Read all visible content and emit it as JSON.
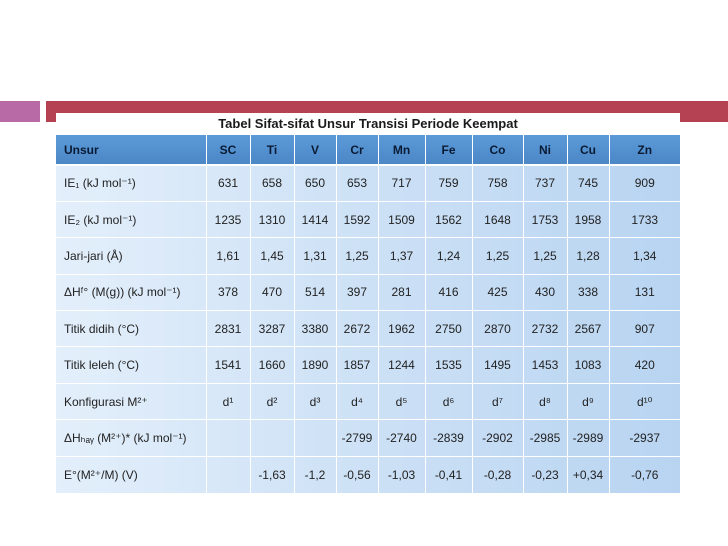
{
  "title": "Tabel Sifat-sifat Unsur Transisi Periode Keempat",
  "columns": [
    "Unsur",
    "SC",
    "Ti",
    "V",
    "Cr",
    "Mn",
    "Fe",
    "Co",
    "Ni",
    "Cu",
    "Zn"
  ],
  "rows": [
    {
      "label": "IE₁ (kJ mol⁻¹)",
      "values": [
        "631",
        "658",
        "650",
        "653",
        "717",
        "759",
        "758",
        "737",
        "745",
        "909"
      ]
    },
    {
      "label": "IE₂ (kJ mol⁻¹)",
      "values": [
        "1235",
        "1310",
        "1414",
        "1592",
        "1509",
        "1562",
        "1648",
        "1753",
        "1958",
        "1733"
      ]
    },
    {
      "label": "Jari-jari (Å)",
      "values": [
        "1,61",
        "1,45",
        "1,31",
        "1,25",
        "1,37",
        "1,24",
        "1,25",
        "1,25",
        "1,28",
        "1,34"
      ]
    },
    {
      "label": "ΔHᶠ° (M(g)) (kJ mol⁻¹)",
      "values": [
        "378",
        "470",
        "514",
        "397",
        "281",
        "416",
        "425",
        "430",
        "338",
        "131"
      ]
    },
    {
      "label": "Titik didih (°C)",
      "values": [
        "2831",
        "3287",
        "3380",
        "2672",
        "1962",
        "2750",
        "2870",
        "2732",
        "2567",
        "907"
      ]
    },
    {
      "label": "Titik leleh (°C)",
      "values": [
        "1541",
        "1660",
        "1890",
        "1857",
        "1244",
        "1535",
        "1495",
        "1453",
        "1083",
        "420"
      ]
    },
    {
      "label": "Konfigurasi M²⁺",
      "values": [
        "d¹",
        "d²",
        "d³",
        "d⁴",
        "d⁵",
        "d⁶",
        "d⁷",
        "d⁸",
        "d⁹",
        "d¹⁰"
      ]
    },
    {
      "label": "ΔHₕₐᵧ (M²⁺)* (kJ mol⁻¹)",
      "values": [
        "",
        "",
        "",
        "-2799",
        "-2740",
        "-2839",
        "-2902",
        "-2985",
        "-2989",
        "-2937"
      ]
    },
    {
      "label": "E°(M²⁺/M) (V)",
      "values": [
        "",
        "-1,63",
        "-1,2",
        "-0,56",
        "-1,03",
        "-0,41",
        "-0,28",
        "-0,23",
        "+0,34",
        "-0,76"
      ]
    }
  ]
}
